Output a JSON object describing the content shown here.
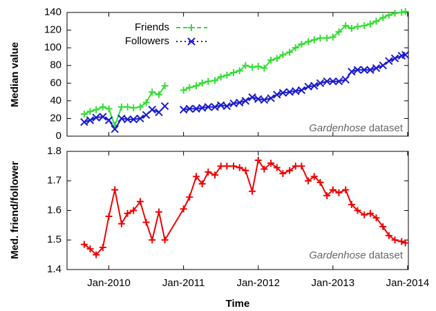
{
  "chart_data": [
    {
      "type": "line",
      "ylabel": "Median value",
      "annotation": {
        "emphasis": "Gardenhose",
        "text": "dataset"
      },
      "x": [
        2009.67,
        2009.75,
        2009.83,
        2009.92,
        2010,
        2010.08,
        2010.17,
        2010.25,
        2010.33,
        2010.42,
        2010.5,
        2010.58,
        2010.67,
        2010.75,
        2010.83,
        2011,
        2011.08,
        2011.17,
        2011.25,
        2011.33,
        2011.42,
        2011.5,
        2011.58,
        2011.67,
        2011.75,
        2011.83,
        2011.92,
        2012,
        2012.08,
        2012.17,
        2012.25,
        2012.33,
        2012.42,
        2012.5,
        2012.58,
        2012.67,
        2012.75,
        2012.83,
        2012.92,
        2013,
        2013.08,
        2013.17,
        2013.25,
        2013.33,
        2013.42,
        2013.5,
        2013.58,
        2013.67,
        2013.75,
        2013.83,
        2013.92,
        2013.97
      ],
      "series": [
        {
          "name": "Friends",
          "color": "#33dd33",
          "marker": "+",
          "dash": "6,4",
          "values": [
            25,
            28,
            30,
            33,
            31,
            12,
            33,
            33,
            32,
            33,
            38,
            50,
            47,
            57,
            null,
            52,
            55,
            57,
            60,
            62,
            63,
            67,
            69,
            72,
            74,
            80,
            78,
            79,
            77,
            86,
            88,
            92,
            95,
            100,
            104,
            107,
            109,
            111,
            111,
            112,
            118,
            125,
            122,
            124,
            125,
            127,
            130,
            134,
            137,
            139,
            140,
            141
          ]
        },
        {
          "name": "Followers",
          "color": "#1a1acc",
          "marker": "x",
          "dash": "2,4",
          "values": [
            16,
            18,
            21,
            22,
            18,
            8,
            20,
            19,
            19,
            20,
            24,
            30,
            27,
            34,
            null,
            30,
            31,
            31,
            32,
            33,
            33,
            35,
            34,
            37,
            38,
            40,
            44,
            42,
            41,
            43,
            47,
            49,
            50,
            51,
            52,
            56,
            57,
            60,
            62,
            62,
            62,
            64,
            73,
            75,
            75,
            75,
            77,
            80,
            85,
            88,
            91,
            92
          ]
        }
      ],
      "xlim": [
        2009.44,
        2014.01
      ],
      "xticks": [
        2010,
        2011,
        2012,
        2013,
        2014
      ],
      "ylim": [
        0,
        140
      ],
      "yticks": [
        0,
        20,
        40,
        60,
        80,
        100,
        120,
        140
      ],
      "grid": false,
      "legend": "top-left"
    },
    {
      "type": "line",
      "ylabel": "Med. friend/follower",
      "xlabel": "Time",
      "annotation": {
        "emphasis": "Gardenhose",
        "text": "dataset"
      },
      "x": [
        2009.67,
        2009.75,
        2009.83,
        2009.92,
        2010,
        2010.08,
        2010.17,
        2010.25,
        2010.33,
        2010.42,
        2010.5,
        2010.58,
        2010.67,
        2010.75,
        2011,
        2011.08,
        2011.17,
        2011.25,
        2011.33,
        2011.42,
        2011.5,
        2011.58,
        2011.67,
        2011.75,
        2011.83,
        2011.92,
        2012,
        2012.08,
        2012.17,
        2012.25,
        2012.33,
        2012.42,
        2012.5,
        2012.58,
        2012.67,
        2012.75,
        2012.83,
        2012.92,
        2013,
        2013.08,
        2013.17,
        2013.25,
        2013.33,
        2013.42,
        2013.5,
        2013.58,
        2013.67,
        2013.75,
        2013.83,
        2013.92,
        2013.97
      ],
      "values": [
        1.485,
        1.47,
        1.45,
        1.475,
        1.58,
        1.67,
        1.555,
        1.59,
        1.6,
        1.63,
        1.56,
        1.5,
        1.595,
        1.5,
        1.605,
        1.645,
        1.715,
        1.69,
        1.73,
        1.72,
        1.75,
        1.75,
        1.75,
        1.745,
        1.735,
        1.665,
        1.77,
        1.74,
        1.76,
        1.745,
        1.725,
        1.735,
        1.75,
        1.75,
        1.7,
        1.715,
        1.695,
        1.65,
        1.67,
        1.66,
        1.67,
        1.62,
        1.6,
        1.585,
        1.59,
        1.575,
        1.545,
        1.515,
        1.5,
        1.495,
        1.49
      ],
      "color": "#ee0000",
      "marker": "+",
      "xlim": [
        2009.44,
        2014.01
      ],
      "xticks": [
        {
          "value": 2010,
          "label": "Jan-2010"
        },
        {
          "value": 2011,
          "label": "Jan-2011"
        },
        {
          "value": 2012,
          "label": "Jan-2012"
        },
        {
          "value": 2013,
          "label": "Jan-2013"
        },
        {
          "value": 2014,
          "label": "Jan-2014"
        }
      ],
      "ylim": [
        1.4,
        1.8
      ],
      "yticks": [
        1.4,
        1.5,
        1.6,
        1.7,
        1.8
      ],
      "grid": false
    }
  ]
}
